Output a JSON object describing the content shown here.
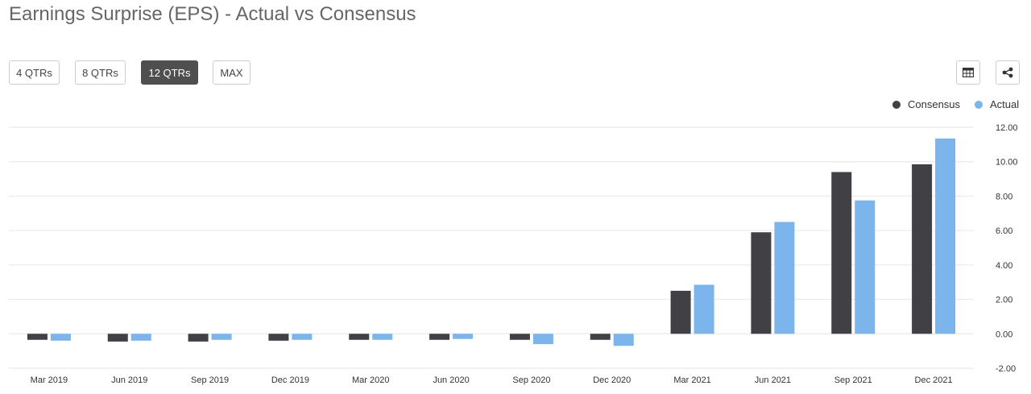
{
  "header": {
    "title": "Earnings Surprise (EPS) - Actual vs Consensus"
  },
  "range_buttons": [
    {
      "label": "4 QTRs",
      "active": false
    },
    {
      "label": "8 QTRs",
      "active": false
    },
    {
      "label": "12 QTRs",
      "active": true
    },
    {
      "label": "MAX",
      "active": false
    }
  ],
  "toolbar": {
    "table_icon": "table-icon",
    "share_icon": "share-icon"
  },
  "colors": {
    "consensus": "#404045",
    "actual": "#7cb5ec",
    "active_button": "#4f4f4f",
    "grid": "#e6e6e6"
  },
  "chart_data": {
    "type": "bar",
    "categories": [
      "Mar 2019",
      "Jun 2019",
      "Sep 2019",
      "Dec 2019",
      "Mar 2020",
      "Jun 2020",
      "Sep 2020",
      "Dec 2020",
      "Mar 2021",
      "Jun 2021",
      "Sep 2021",
      "Dec 2021"
    ],
    "series": [
      {
        "name": "Consensus",
        "color": "#404045",
        "values": [
          -0.35,
          -0.45,
          -0.45,
          -0.4,
          -0.35,
          -0.35,
          -0.35,
          -0.35,
          2.5,
          5.9,
          9.4,
          9.85
        ]
      },
      {
        "name": "Actual",
        "color": "#7cb5ec",
        "values": [
          -0.4,
          -0.4,
          -0.35,
          -0.35,
          -0.35,
          -0.3,
          -0.6,
          -0.7,
          2.85,
          6.5,
          7.75,
          11.35
        ]
      }
    ],
    "ylim": [
      -2,
      12
    ],
    "yticks": [
      "12.00",
      "10.00",
      "8.00",
      "6.00",
      "4.00",
      "2.00",
      "0.00",
      "-2.00"
    ],
    "ytick_values": [
      12,
      10,
      8,
      6,
      4,
      2,
      0,
      -2
    ],
    "y_axis_side": "right",
    "grid": true,
    "legend": "top-right",
    "legend_entries": [
      "Consensus",
      "Actual"
    ]
  }
}
